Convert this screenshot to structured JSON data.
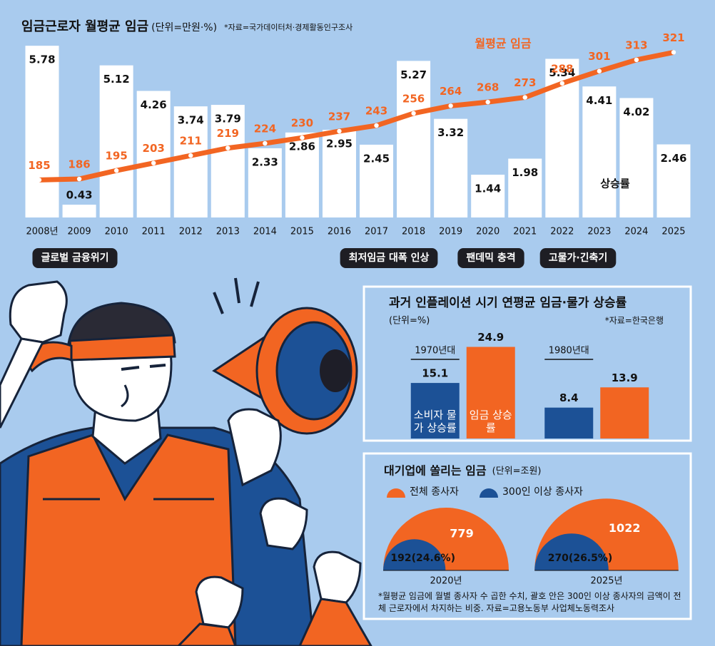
{
  "chart_data": [
    {
      "type": "bar",
      "title": "임금근로자 월평균 임금",
      "subtitle": "(단위=만원·%)",
      "source": "*자료=국가데이터처·경제활동인구조사",
      "categories": [
        "2008년",
        "2009",
        "2010",
        "2011",
        "2012",
        "2013",
        "2014",
        "2015",
        "2016",
        "2017",
        "2018",
        "2019",
        "2020",
        "2021",
        "2022",
        "2023",
        "2024",
        "2025"
      ],
      "series": [
        {
          "name": "상승률",
          "color": "#ffffff",
          "values": [
            5.78,
            0.43,
            5.12,
            4.26,
            3.74,
            3.79,
            2.33,
            2.86,
            2.95,
            2.45,
            5.27,
            3.32,
            1.44,
            1.98,
            5.34,
            4.41,
            4.02,
            2.46
          ]
        },
        {
          "name": "월평균 임금",
          "type": "line",
          "axis": "y2",
          "color": "#f26522",
          "values": [
            185,
            186,
            195,
            203,
            211,
            219,
            224,
            230,
            237,
            243,
            256,
            264,
            268,
            273,
            288,
            301,
            313,
            321
          ]
        }
      ],
      "ylim": [
        0,
        6
      ],
      "y2lim": [
        145,
        335
      ],
      "annotations": [
        "글로벌 금융위기",
        "최저임금 대폭 인상",
        "팬데믹 충격",
        "고물가·긴축기"
      ]
    },
    {
      "type": "bar",
      "title": "과거 인플레이션 시기 연평균 임금·물가 상승률",
      "subtitle": "(단위=%)",
      "source": "*자료=한국은행",
      "categories": [
        "1970년대",
        "1980년대"
      ],
      "series": [
        {
          "name": "소비자 물가 상승률",
          "color": "#1c5196",
          "values": [
            15.1,
            8.4
          ]
        },
        {
          "name": "임금 상승률",
          "color": "#f26522",
          "values": [
            24.9,
            13.9
          ]
        }
      ],
      "ylim": [
        0,
        25
      ]
    },
    {
      "type": "semicircle",
      "title": "대기업에 쏠리는 임금",
      "subtitle": "(단위=조원)",
      "categories": [
        "2020년",
        "2025년"
      ],
      "series": [
        {
          "name": "전체 종사자",
          "color": "#f26522",
          "values": [
            779,
            1022
          ]
        },
        {
          "name": "300인 이상 종사자",
          "color": "#1c5196",
          "values": [
            192,
            270
          ],
          "value_labels": [
            "192(24.6%)",
            "270(26.5%)"
          ]
        }
      ],
      "note": "*월평균 임금에 월별 종사자 수 곱한 수치, 괄호 안은 300인 이상 종사자의 금액이 전체 근로자에서 차지하는 비중. 자료=고용노동부 사업체노동력조사"
    }
  ]
}
